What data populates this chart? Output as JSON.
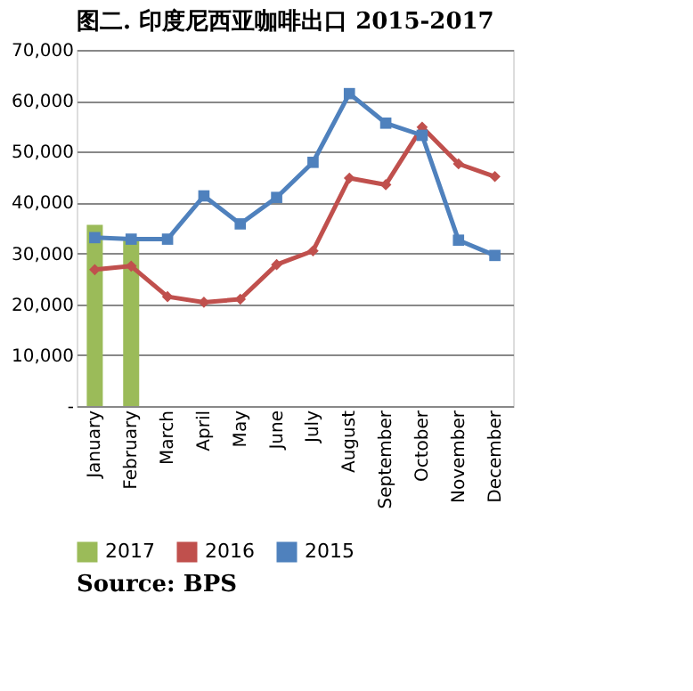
{
  "chart_data": {
    "type": "line",
    "title": "图二. 印度尼西亚咖啡出口 2015-2017",
    "categories": [
      "January",
      "February",
      "March",
      "April",
      "May",
      "June",
      "July",
      "August",
      "September",
      "October",
      "November",
      "December"
    ],
    "series": [
      {
        "name": "2017",
        "type": "bar",
        "color": "#9bbb59",
        "values": [
          35600,
          32800,
          null,
          null,
          null,
          null,
          null,
          null,
          null,
          null,
          null,
          null
        ]
      },
      {
        "name": "2016",
        "color": "#c0504d",
        "marker": "diamond",
        "values": [
          26800,
          27500,
          21500,
          20400,
          21000,
          27800,
          30500,
          44800,
          43500,
          54800,
          47600,
          45100
        ]
      },
      {
        "name": "2015",
        "color": "#4f81bd",
        "marker": "square",
        "values": [
          33100,
          32800,
          32800,
          41300,
          35800,
          41000,
          47900,
          61400,
          55600,
          53200,
          32600,
          29600
        ]
      }
    ],
    "ylim": [
      0,
      70000
    ],
    "yticks": [
      {
        "value": 0,
        "label": "-"
      },
      {
        "value": 10000,
        "label": "10,000"
      },
      {
        "value": 20000,
        "label": "20,000"
      },
      {
        "value": 30000,
        "label": "30,000"
      },
      {
        "value": 40000,
        "label": "40,000"
      },
      {
        "value": 50000,
        "label": "50,000"
      },
      {
        "value": 60000,
        "label": "60,000"
      },
      {
        "value": 70000,
        "label": "70,000"
      }
    ],
    "grid": "y",
    "legend": "bottom",
    "line_style": "solid",
    "annotations": [
      "Source: BPS"
    ]
  }
}
